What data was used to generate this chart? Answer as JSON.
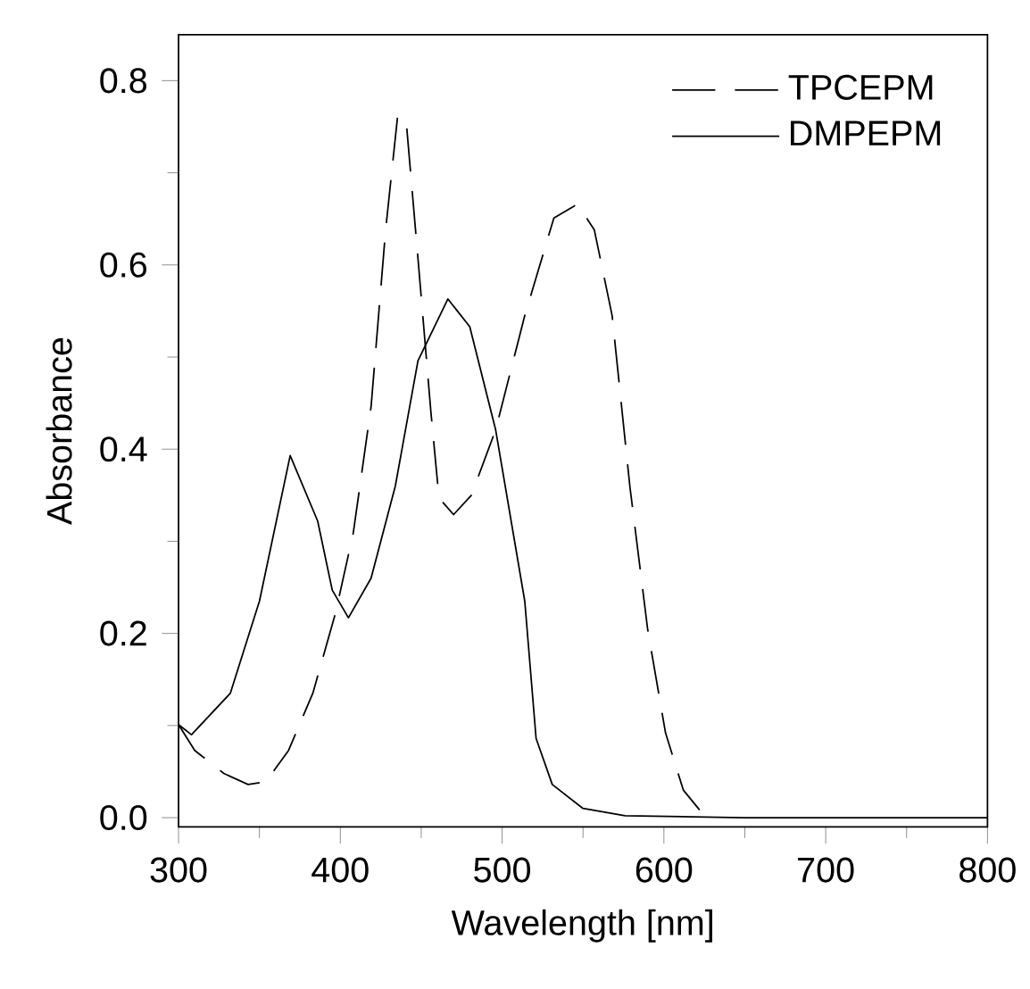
{
  "chart_data": {
    "type": "line",
    "xlabel": "Wavelength [nm]",
    "ylabel": "Absorbance",
    "xlim": [
      300,
      800
    ],
    "ylim": [
      -0.01,
      0.85
    ],
    "xticks": [
      300,
      400,
      500,
      600,
      700,
      800
    ],
    "yticks": [
      {
        "value": 0.0,
        "label": "0.0"
      },
      0.2,
      0.4,
      0.6,
      0.8
    ],
    "legend": "top right",
    "grid": false,
    "marker": "none",
    "series": [
      {
        "name": "TPCEPM",
        "color": "#000000",
        "line_style": "dashed",
        "x": [
          300,
          310,
          328,
          343,
          354,
          368,
          383,
          397,
          408,
          419,
          428,
          435.5,
          441,
          448,
          456,
          461,
          470,
          481,
          496,
          514,
          532,
          546.6,
          557,
          568,
          579,
          590,
          601,
          612,
          625
        ],
        "values": [
          0.101,
          0.073,
          0.048,
          0.036,
          0.039,
          0.073,
          0.135,
          0.222,
          0.309,
          0.446,
          0.638,
          0.763,
          0.75,
          0.607,
          0.44,
          0.347,
          0.329,
          0.35,
          0.421,
          0.545,
          0.651,
          0.666,
          0.638,
          0.545,
          0.359,
          0.204,
          0.092,
          0.03,
          0.002
        ]
      },
      {
        "name": "DMPEPM",
        "color": "#000000",
        "line_style": "solid",
        "x": [
          300,
          308,
          332,
          350,
          369,
          386,
          395,
          405,
          419,
          434,
          448,
          466.5,
          480,
          496,
          514,
          521,
          531,
          550,
          576,
          650,
          700,
          800
        ],
        "values": [
          0.101,
          0.09,
          0.135,
          0.235,
          0.393,
          0.322,
          0.247,
          0.217,
          0.26,
          0.36,
          0.496,
          0.563,
          0.533,
          0.421,
          0.235,
          0.086,
          0.036,
          0.01,
          0.002,
          0.0,
          0.0,
          0.0
        ]
      }
    ]
  }
}
